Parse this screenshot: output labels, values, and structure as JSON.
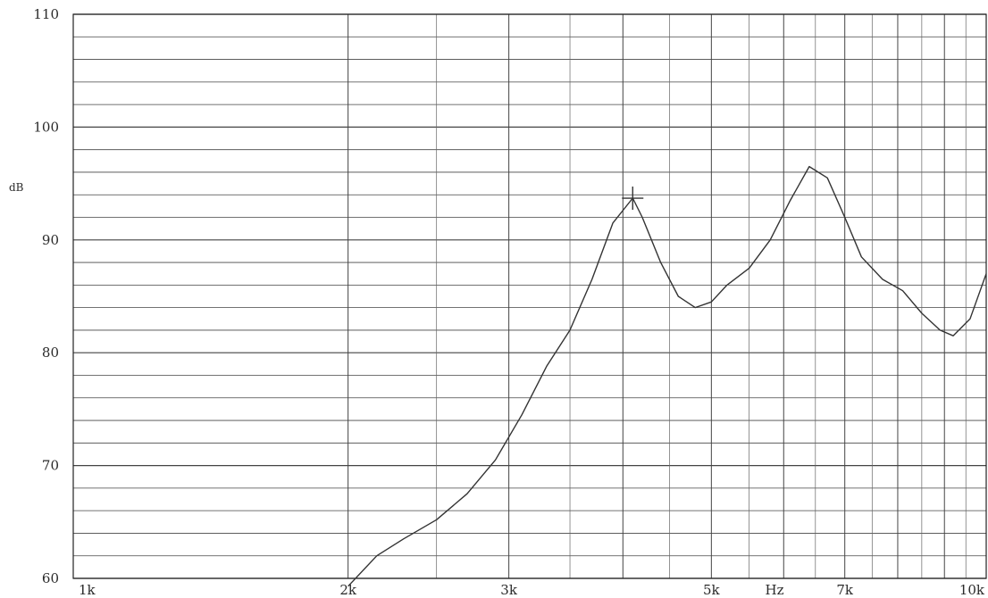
{
  "chart_data": {
    "type": "line",
    "title": "",
    "xlabel": "Hz",
    "ylabel": "dB",
    "x_scale": "log",
    "xlim": [
      1000,
      10000
    ],
    "ylim": [
      60,
      110
    ],
    "grid": true,
    "x_ticks": [
      {
        "value": 1000,
        "label": "1k"
      },
      {
        "value": 2000,
        "label": "2k"
      },
      {
        "value": 3000,
        "label": "3k"
      },
      {
        "value": 5000,
        "label": "5k"
      },
      {
        "value": 7000,
        "label": "7k"
      },
      {
        "value": 10000,
        "label": "10k"
      }
    ],
    "y_ticks": [
      {
        "value": 60,
        "label": "60"
      },
      {
        "value": 70,
        "label": "70"
      },
      {
        "value": 80,
        "label": "80"
      },
      {
        "value": 90,
        "label": "90"
      },
      {
        "value": 100,
        "label": "100"
      },
      {
        "value": 110,
        "label": "110"
      }
    ],
    "series": [
      {
        "color": "#333333",
        "x": [
          2000,
          2150,
          2300,
          2500,
          2700,
          2900,
          3100,
          3300,
          3500,
          3700,
          3900,
          4100,
          4200,
          4400,
          4600,
          4800,
          5000,
          5200,
          5500,
          5800,
          6100,
          6400,
          6700,
          7000,
          7300,
          7700,
          8100,
          8500,
          8900,
          9200,
          9600,
          10000
        ],
        "y": [
          59.3,
          62.0,
          63.5,
          65.2,
          67.5,
          70.5,
          74.5,
          78.8,
          82.0,
          86.5,
          91.5,
          93.7,
          92.0,
          88.0,
          85.0,
          84.0,
          84.5,
          86.0,
          87.5,
          90.0,
          93.5,
          96.5,
          95.5,
          92.0,
          88.5,
          86.5,
          85.5,
          83.5,
          82.0,
          81.5,
          83.0,
          87.0
        ]
      }
    ],
    "annotations": [
      {
        "type": "marker",
        "shape": "plus",
        "x": 4100,
        "y": 93.7
      }
    ]
  }
}
